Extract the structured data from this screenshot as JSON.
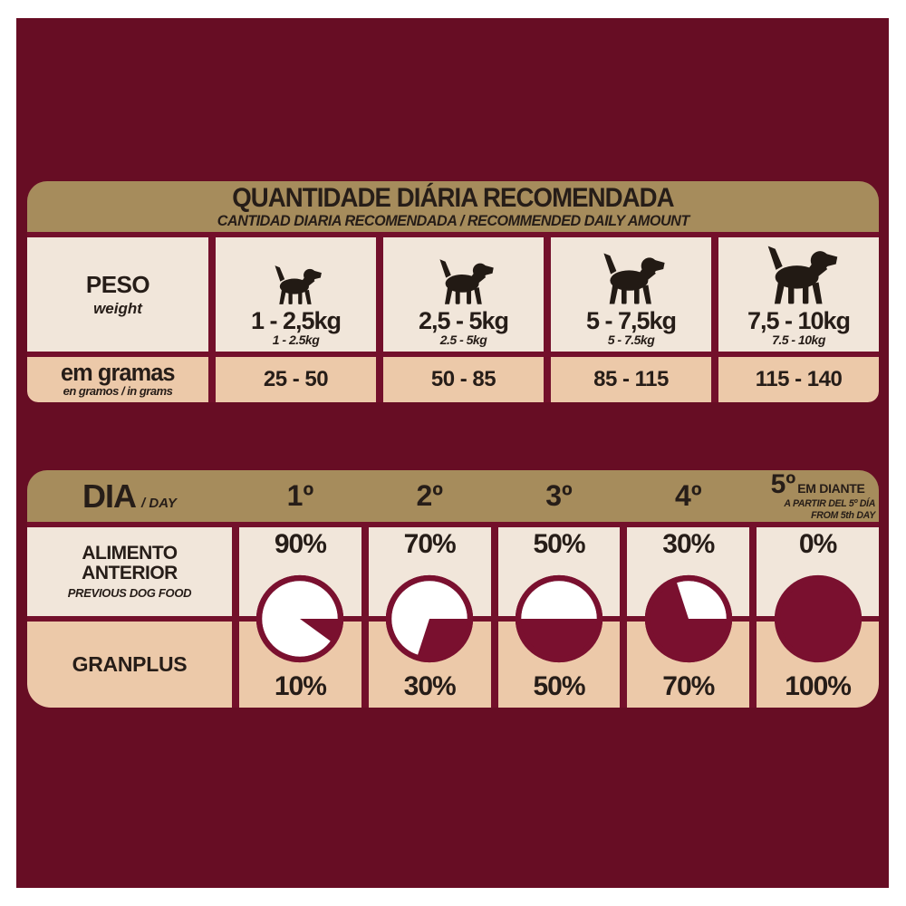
{
  "colors": {
    "maroon_bg": "#670d24",
    "table_border": "#73102b",
    "header_tan": "#a68c5c",
    "row_cream": "#f1e6da",
    "row_peach": "#ecc9a9",
    "pie_maroon": "#7a102f",
    "text_dark": "#261d18",
    "pie_white": "#ffffff"
  },
  "table1": {
    "title": "QUANTIDADE DIÁRIA RECOMENDADA",
    "subtitle": "CANTIDAD DIARIA RECOMENDADA / RECOMMENDED DAILY AMOUNT",
    "peso": {
      "label": "PESO",
      "sublabel": "weight"
    },
    "weights": [
      {
        "icon": "dog-icon",
        "range_pt": "1 - 2,5kg",
        "range_en": "1 - 2.5kg"
      },
      {
        "icon": "dog-icon",
        "range_pt": "2,5 - 5kg",
        "range_en": "2.5 - 5kg"
      },
      {
        "icon": "dog-icon",
        "range_pt": "5 - 7,5kg",
        "range_en": "5 - 7.5kg"
      },
      {
        "icon": "dog-icon",
        "range_pt": "7,5 - 10kg",
        "range_en": "7.5 - 10kg"
      }
    ],
    "grams": {
      "label": "em gramas",
      "sublabel": "en gramos / in grams",
      "values": [
        "25 - 50",
        "50 - 85",
        "85 - 115",
        "115 - 140"
      ]
    }
  },
  "table2": {
    "dia": {
      "label": "DIA",
      "sublabel": "/ DAY"
    },
    "previous_row": {
      "label": "ALIMENTO ANTERIOR",
      "sublabel": "PREVIOUS DOG FOOD"
    },
    "granplus_row": {
      "label": "GRANPLUS"
    },
    "days": [
      {
        "label": "1º",
        "previous": "90%",
        "granplus": "10%",
        "granplus_value": 10
      },
      {
        "label": "2º",
        "previous": "70%",
        "granplus": "30%",
        "granplus_value": 30
      },
      {
        "label": "3º",
        "previous": "50%",
        "granplus": "50%",
        "granplus_value": 50
      },
      {
        "label": "4º",
        "previous": "30%",
        "granplus": "70%",
        "granplus_value": 70
      },
      {
        "label": "5º",
        "suffix": "EM DIANTE",
        "sub_es": "A PARTIR DEL 5º DÍA",
        "sub_en": "FROM 5th DAY",
        "previous": "0%",
        "granplus": "100%",
        "granplus_value": 100
      }
    ]
  }
}
